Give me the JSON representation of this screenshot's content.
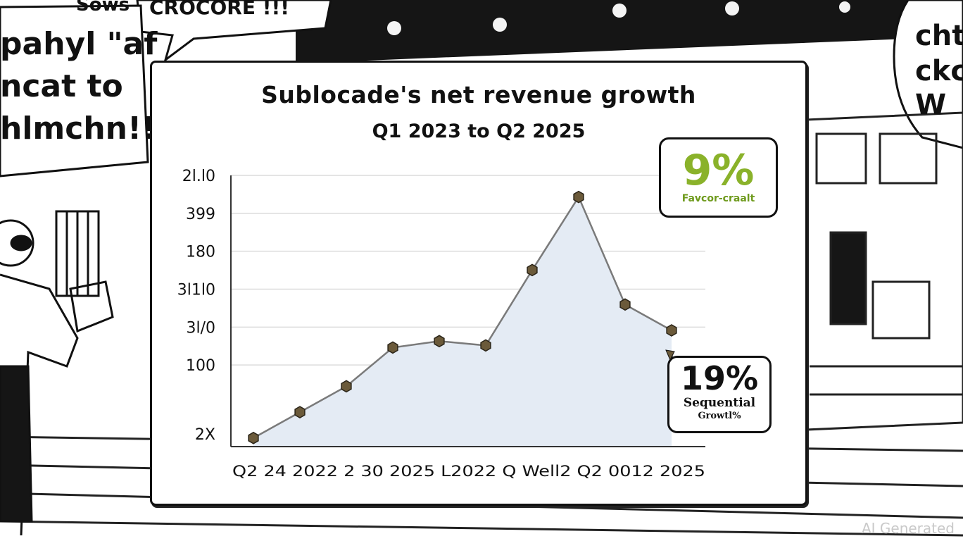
{
  "comic": {
    "top_left_text": "Sows",
    "top_text": "CROCORE !!!",
    "left_bubble_lines": [
      "pahyl \"af",
      "ncat to",
      "hlmchn!!"
    ],
    "right_bubble_lines": [
      "chte",
      "ckc",
      "W"
    ]
  },
  "callouts": {
    "top": {
      "value": "9%",
      "label": "Favcor-craalt",
      "color": "#8ab22a"
    },
    "bottom": {
      "value": "19%",
      "label1": "Sequential",
      "label2": "Growtl%"
    }
  },
  "watermark": "AI Generated",
  "chart_data": {
    "type": "area",
    "title": "Sublocade's net revenue growth",
    "subtitle": "Q1 2023 to Q2 2025",
    "y_tick_labels": [
      "2X",
      "100",
      "3l/0",
      "3l1l0",
      "180",
      "399",
      "2l.l0"
    ],
    "x_tick_labels": [
      "Q2 24",
      "2022",
      "2 30",
      "2025",
      "L2022",
      "Q",
      "2",
      "Q2",
      "0012",
      "2025"
    ],
    "x_axis_text": "Q2 24 2022 2 30 2025 L2022 Q Well2 Q2 0012 2025",
    "points": [
      0.2,
      0.8,
      1.4,
      2.3,
      2.45,
      2.35,
      4.1,
      5.8,
      3.3,
      2.7
    ],
    "ylim": [
      0,
      6.3
    ],
    "grid": true,
    "line_color": "#7a7a7a",
    "fill_color": "#e4ebf4",
    "marker_color": "#6b5a3a"
  }
}
